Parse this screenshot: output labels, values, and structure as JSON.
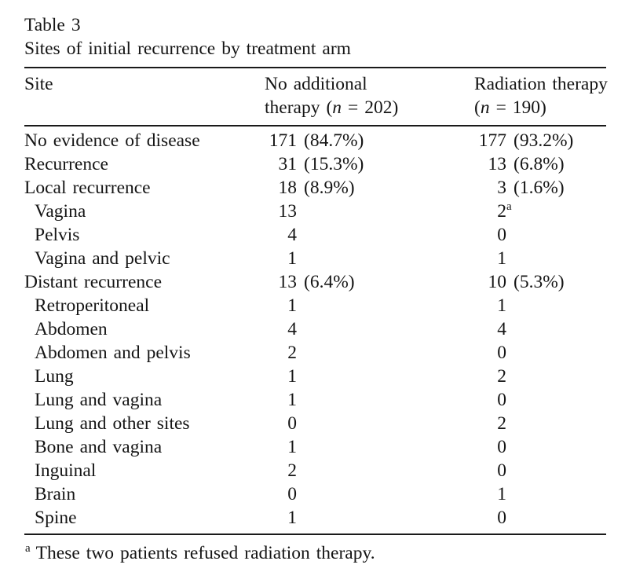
{
  "table": {
    "label": "Table 3",
    "caption": "Sites of initial recurrence by treatment arm",
    "header": {
      "site": "Site",
      "no_therapy": {
        "line1": "No additional",
        "line2_pre": "therapy (",
        "n_symbol": "n",
        "line2_post": " = 202)"
      },
      "radiation": {
        "line1": "Radiation therapy",
        "line2_pre": "(",
        "n_symbol": "n",
        "line2_post": " = 190)"
      }
    },
    "rows": [
      {
        "site": "No evidence of disease",
        "indent": false,
        "no_therapy": {
          "n": "171",
          "pct": "(84.7%)"
        },
        "radiation": {
          "n": "177",
          "pct": "(93.2%)"
        }
      },
      {
        "site": "Recurrence",
        "indent": false,
        "no_therapy": {
          "n": "31",
          "pct": "(15.3%)"
        },
        "radiation": {
          "n": "13",
          "pct": "(6.8%)"
        }
      },
      {
        "site": "Local recurrence",
        "indent": false,
        "no_therapy": {
          "n": "18",
          "pct": "(8.9%)"
        },
        "radiation": {
          "n": "3",
          "pct": "(1.6%)"
        }
      },
      {
        "site": "Vagina",
        "indent": true,
        "no_therapy": {
          "n": "13"
        },
        "radiation": {
          "n": "2",
          "sup": "a"
        }
      },
      {
        "site": "Pelvis",
        "indent": true,
        "no_therapy": {
          "n": "4"
        },
        "radiation": {
          "n": "0"
        }
      },
      {
        "site": "Vagina and pelvic",
        "indent": true,
        "no_therapy": {
          "n": "1"
        },
        "radiation": {
          "n": "1"
        }
      },
      {
        "site": "Distant recurrence",
        "indent": false,
        "no_therapy": {
          "n": "13",
          "pct": "(6.4%)"
        },
        "radiation": {
          "n": "10",
          "pct": "(5.3%)"
        }
      },
      {
        "site": "Retroperitoneal",
        "indent": true,
        "no_therapy": {
          "n": "1"
        },
        "radiation": {
          "n": "1"
        }
      },
      {
        "site": "Abdomen",
        "indent": true,
        "no_therapy": {
          "n": "4"
        },
        "radiation": {
          "n": "4"
        }
      },
      {
        "site": "Abdomen and pelvis",
        "indent": true,
        "no_therapy": {
          "n": "2"
        },
        "radiation": {
          "n": "0"
        }
      },
      {
        "site": "Lung",
        "indent": true,
        "no_therapy": {
          "n": "1"
        },
        "radiation": {
          "n": "2"
        }
      },
      {
        "site": "Lung and vagina",
        "indent": true,
        "no_therapy": {
          "n": "1"
        },
        "radiation": {
          "n": "0"
        }
      },
      {
        "site": "Lung and other sites",
        "indent": true,
        "no_therapy": {
          "n": "0"
        },
        "radiation": {
          "n": "2"
        }
      },
      {
        "site": "Bone and vagina",
        "indent": true,
        "no_therapy": {
          "n": "1"
        },
        "radiation": {
          "n": "0"
        }
      },
      {
        "site": "Inguinal",
        "indent": true,
        "no_therapy": {
          "n": "2"
        },
        "radiation": {
          "n": "0"
        }
      },
      {
        "site": "Brain",
        "indent": true,
        "no_therapy": {
          "n": "0"
        },
        "radiation": {
          "n": "1"
        }
      },
      {
        "site": "Spine",
        "indent": true,
        "no_therapy": {
          "n": "1"
        },
        "radiation": {
          "n": "0"
        }
      }
    ],
    "footnote": {
      "marker": "a",
      "text": "These two patients refused radiation therapy."
    },
    "colors": {
      "text": "#151515",
      "rule": "#1a1a1a",
      "background": "#ffffff"
    }
  }
}
